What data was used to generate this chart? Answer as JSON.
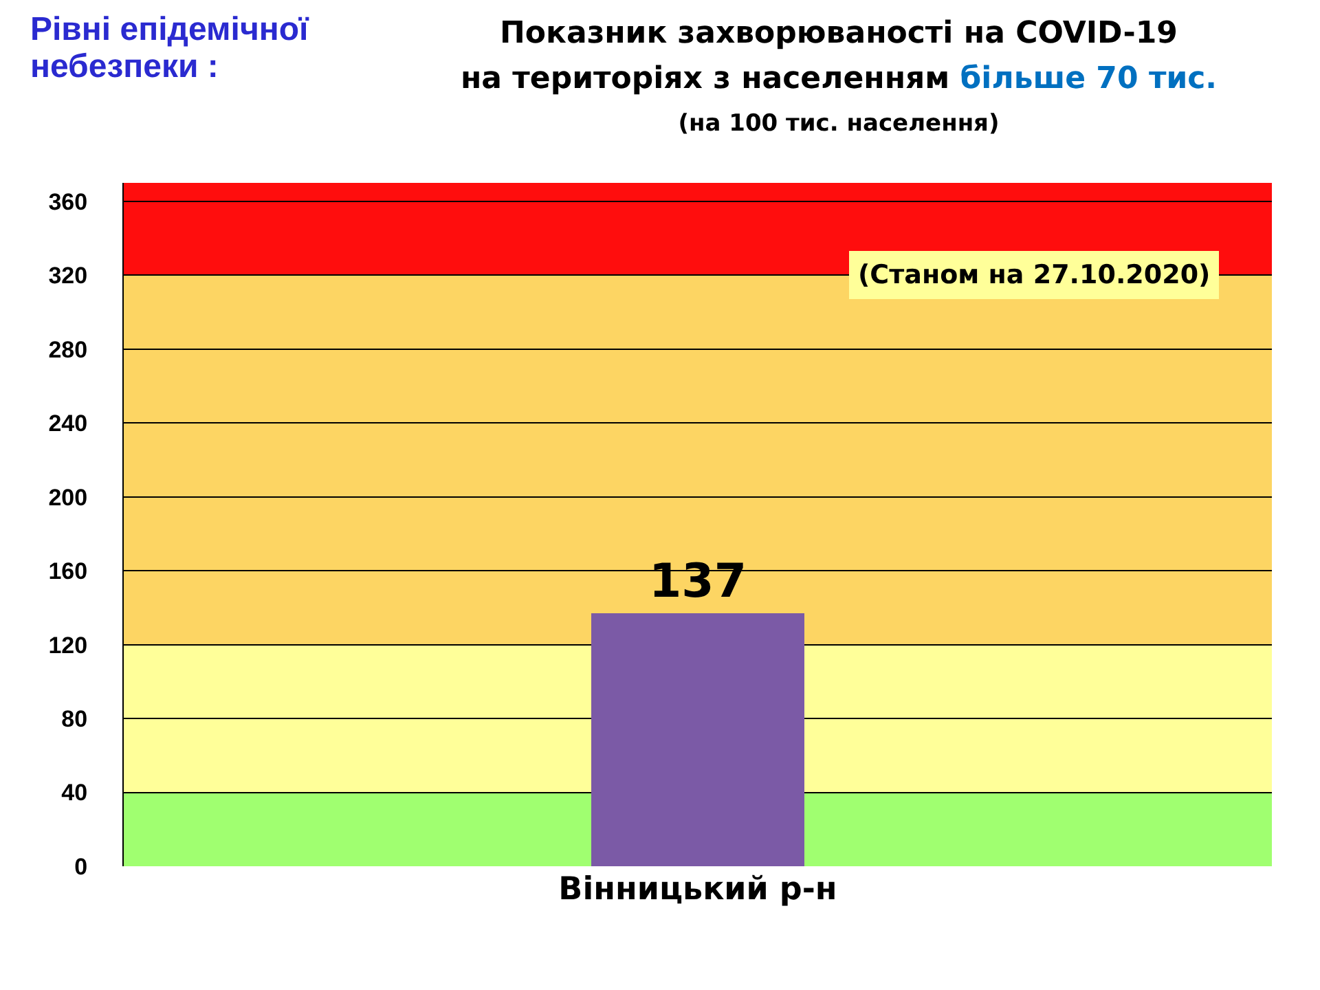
{
  "chart_data": {
    "type": "bar",
    "title": "Показник захворюваності на COVID-19\nна територіях з населенням",
    "subtitle": "більше 70 тис.",
    "annotations": [
      "Рівні епідемічної небезпеки :",
      "(на 100 тис. населення)",
      "(Станом на 27.10.2020)"
    ],
    "categories": [
      "Вінницький р-н"
    ],
    "values": [
      137
    ],
    "color": "#7b5aa6",
    "data_labels": true,
    "ylim": [
      0,
      370
    ],
    "yticks": [
      0,
      40,
      80,
      120,
      160,
      200,
      240,
      280,
      320,
      360
    ],
    "grid": "y",
    "bands": [
      {
        "axis": "y",
        "from": 0,
        "to": 40,
        "color": "#a0ff70"
      },
      {
        "axis": "y",
        "from": 40,
        "to": 120,
        "color": "#ffff99"
      },
      {
        "axis": "y",
        "from": 120,
        "to": 320,
        "color": "#fdd563"
      },
      {
        "axis": "y",
        "from": 320,
        "to": 370,
        "color": "#ff0d0d"
      }
    ]
  }
}
